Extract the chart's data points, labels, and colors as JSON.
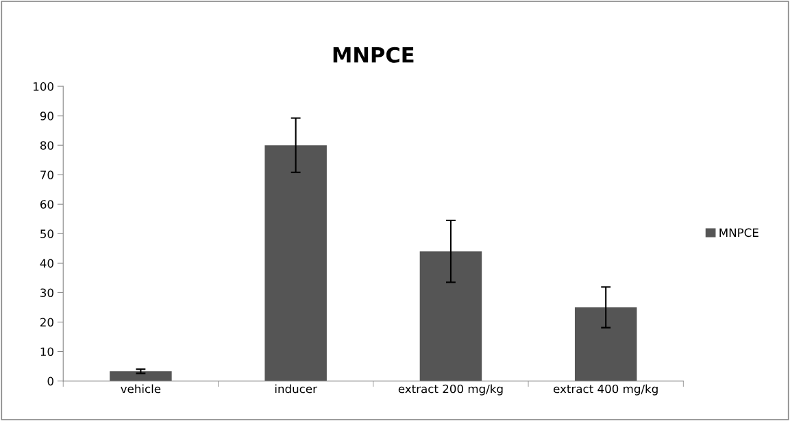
{
  "chart_data": {
    "type": "bar",
    "title": "MNPCE",
    "categories": [
      "vehicle",
      "inducer",
      "extract 200 mg/kg",
      "extract 400 mg/kg"
    ],
    "series": [
      {
        "name": "MNPCE",
        "color": "#555555",
        "values": [
          3.3,
          80.0,
          44.0,
          25.0
        ],
        "errors": [
          0.7,
          9.2,
          10.5,
          6.9
        ]
      }
    ],
    "ylim": [
      0,
      100
    ],
    "yticks": [
      0,
      10,
      20,
      30,
      40,
      50,
      60,
      70,
      80,
      90,
      100
    ],
    "grid": false,
    "legend": "right"
  }
}
